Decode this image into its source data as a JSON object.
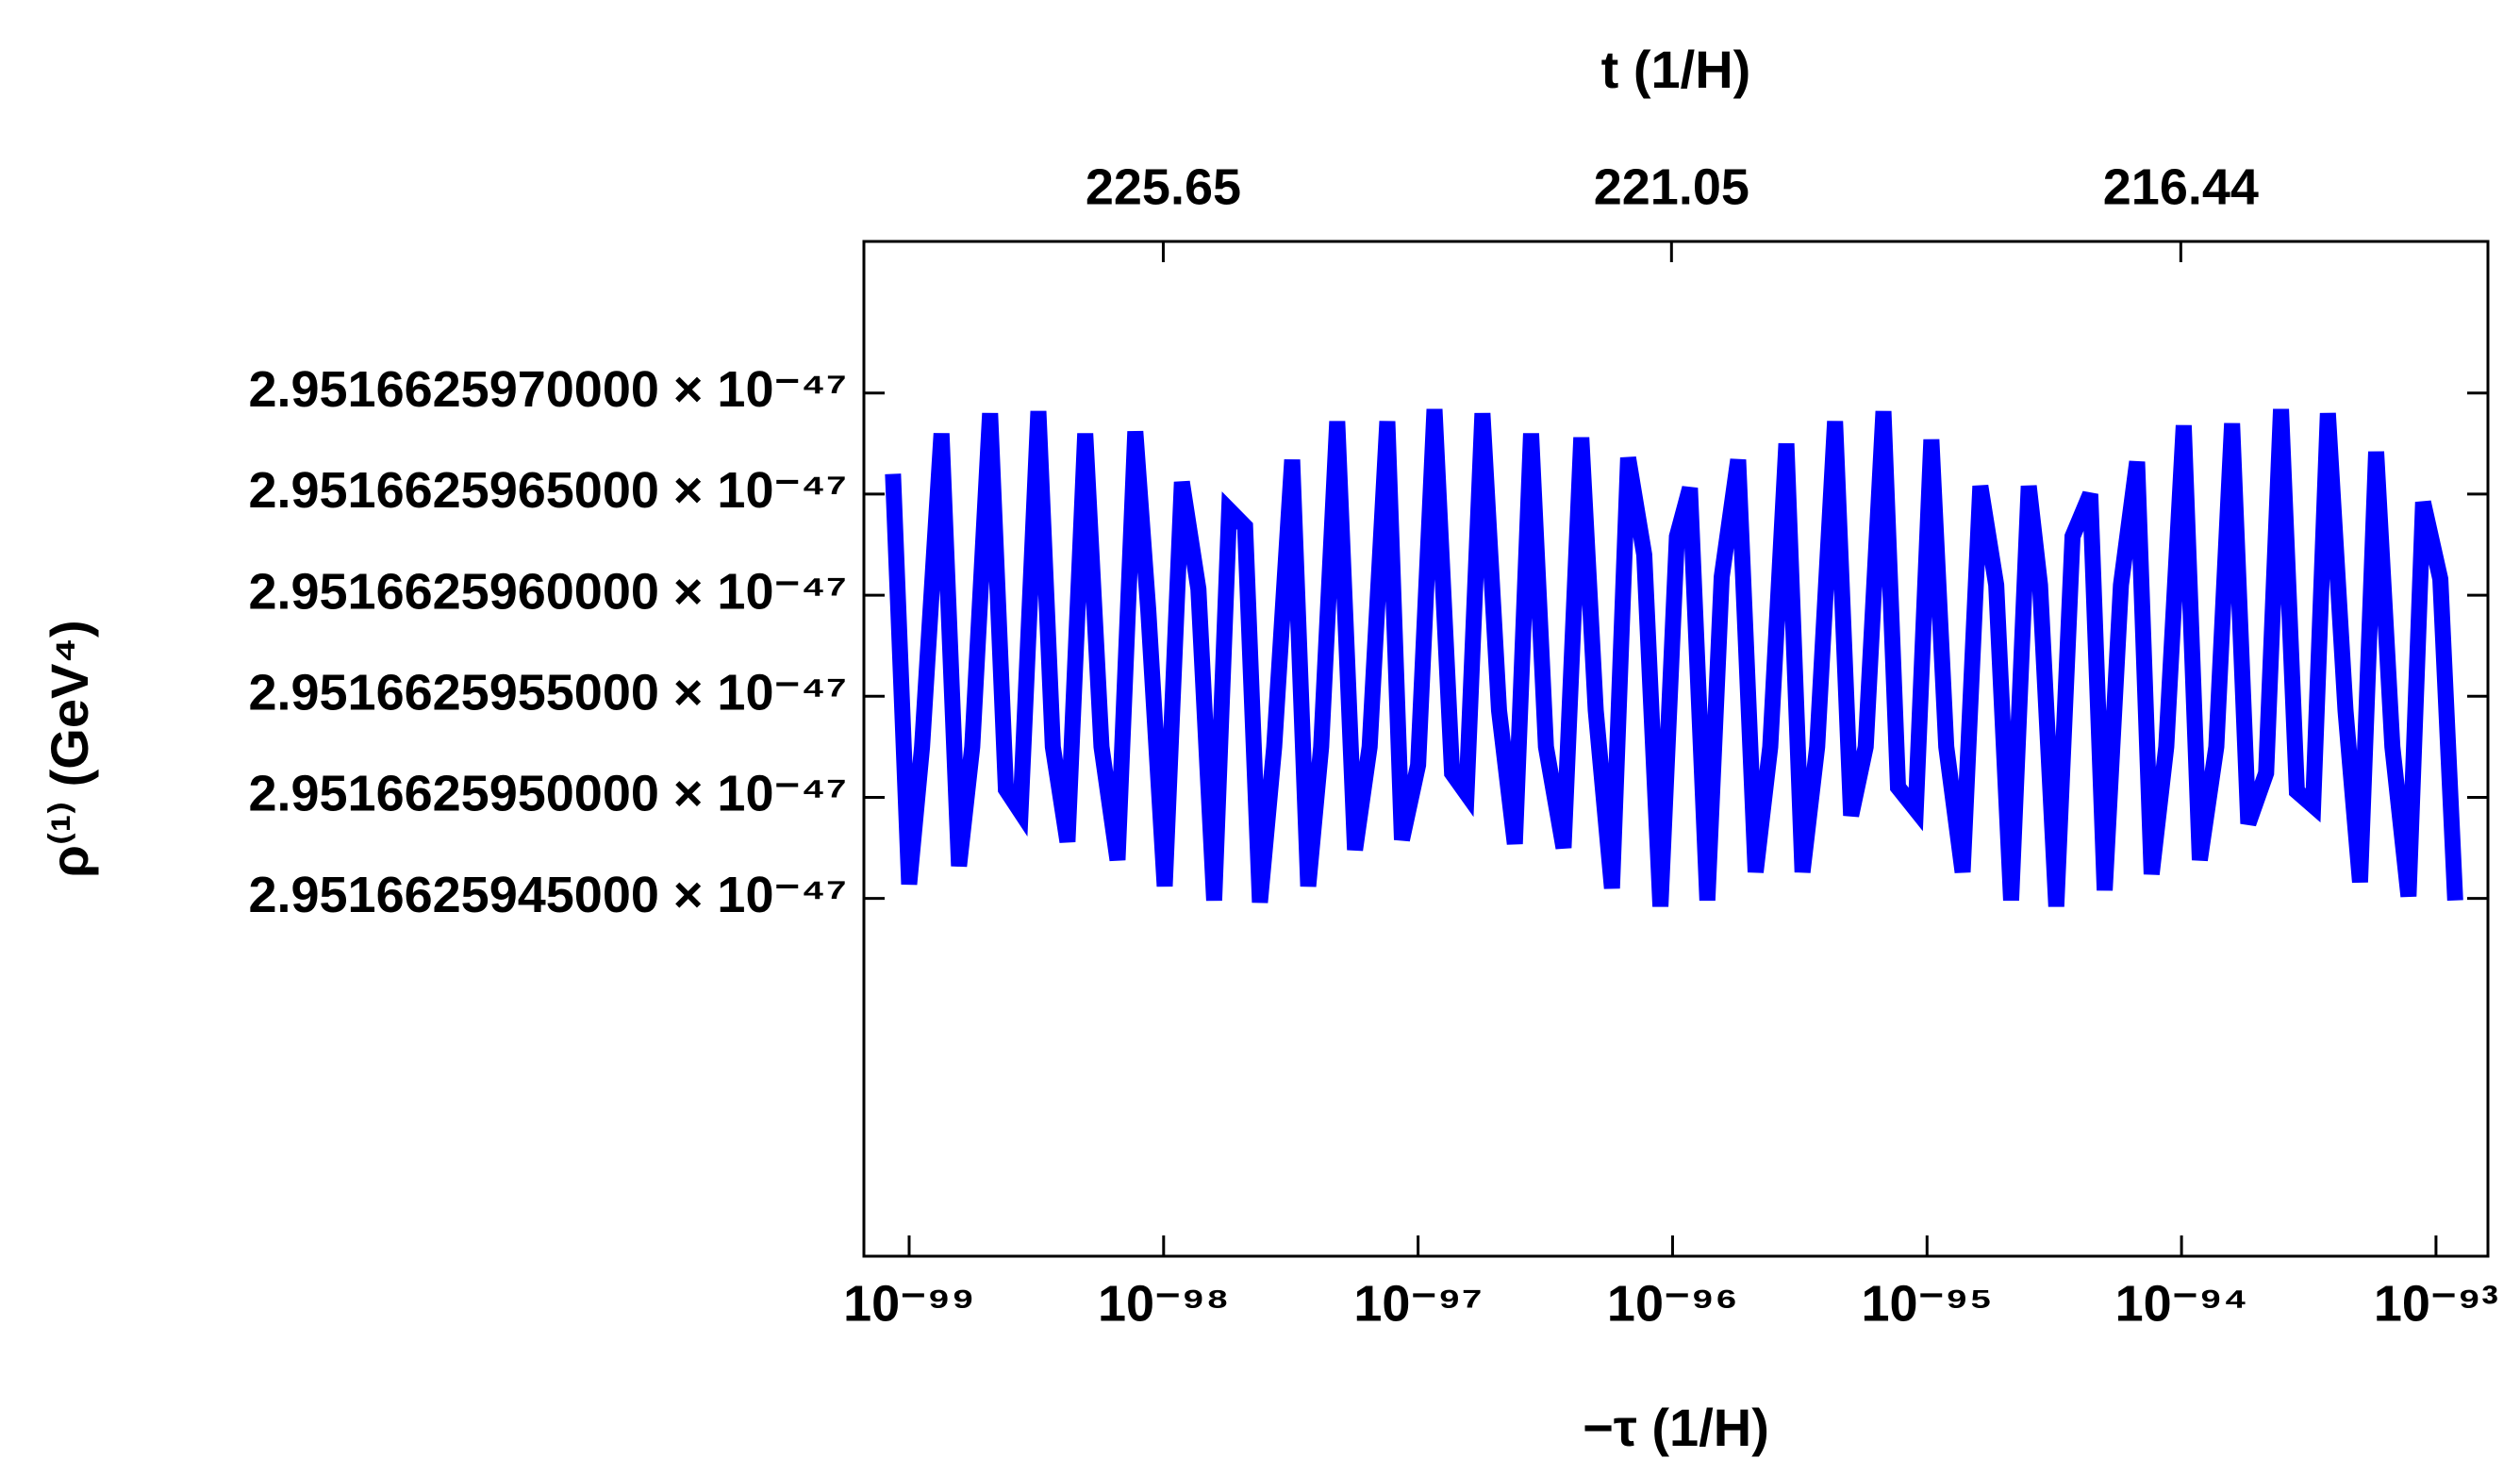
{
  "chart_data": {
    "type": "line",
    "x_label": "−τ (1/H)",
    "x2_label": "t (1/H)",
    "y_label": "ρ⁽¹⁾ (GeV⁴)",
    "xscale": "log",
    "xlim": [
      6.64e-100,
      1.6e-93
    ],
    "xticks": [
      {
        "value": 1e-99,
        "label": "10⁻⁹⁹"
      },
      {
        "value": 1e-98,
        "label": "10⁻⁹⁸"
      },
      {
        "value": 1e-97,
        "label": "10⁻⁹⁷"
      },
      {
        "value": 1e-96,
        "label": "10⁻⁹⁶"
      },
      {
        "value": 1e-95,
        "label": "10⁻⁹⁵"
      },
      {
        "value": 1e-94,
        "label": "10⁻⁹⁴"
      },
      {
        "value": 1e-93,
        "label": "10⁻⁹³"
      }
    ],
    "x2lim": [
      228.36,
      213.66
    ],
    "x2ticks": [
      225.65,
      221.05,
      216.44
    ],
    "ylim": [
      2.95166259273e-47,
      2.95166259775e-47
    ],
    "yticks": [
      {
        "value": 2.9516625945e-47,
        "label": "2.9516625945000 × 10⁻⁴⁷"
      },
      {
        "value": 2.951662595e-47,
        "label": "2.9516625950000 × 10⁻⁴⁷"
      },
      {
        "value": 2.9516625955e-47,
        "label": "2.9516625955000 × 10⁻⁴⁷"
      },
      {
        "value": 2.951662596e-47,
        "label": "2.9516625960000 × 10⁻⁴⁷"
      },
      {
        "value": 2.9516625965e-47,
        "label": "2.9516625965000 × 10⁻⁴⁷"
      },
      {
        "value": 2.951662597e-47,
        "label": "2.9516625970000 × 10⁻⁴⁷"
      }
    ],
    "color": "#0000ff",
    "x": [
      8.64e-100,
      1e-99,
      1.124e-99,
      1.34e-99,
      1.57e-99,
      1.77e-99,
      2.08e-99,
      2.4e-99,
      2.74e-99,
      3.22e-99,
      3.67e-99,
      4.19e-99,
      4.92e-99,
      5.7e-99,
      6.59e-99,
      7.74e-99,
      8.71e-99,
      1.01e-98,
      1.18e-98,
      1.37e-98,
      1.58e-98,
      1.81e-98,
      2.09e-98,
      2.39e-98,
      2.72e-98,
      3.2e-98,
      3.7e-98,
      4.16e-98,
      4.81e-98,
      5.65e-98,
      6.45e-98,
      7.57e-98,
      8.64e-98,
      1e-97,
      1.16e-97,
      1.36e-97,
      1.55e-97,
      1.79e-97,
      2.08e-97,
      2.4e-97,
      2.78e-97,
      3.18e-97,
      3.73e-97,
      4.38e-97,
      4.99e-97,
      5.78e-97,
      6.69e-97,
      7.74e-97,
      8.96e-97,
      1.04e-96,
      1.17e-96,
      1.37e-96,
      1.56e-96,
      1.81e-96,
      2.12e-96,
      2.42e-96,
      2.8e-96,
      3.24e-96,
      3.7e-96,
      4.35e-96,
      5.03e-96,
      5.74e-96,
      6.74e-96,
      7.69e-96,
      9.03e-96,
      1.04e-95,
      1.19e-95,
      1.38e-95,
      1.62e-95,
      1.87e-95,
      2.14e-95,
      2.51e-95,
      2.78e-95,
      3.22e-95,
      3.73e-95,
      4.38e-95,
      4.99e-95,
      5.78e-95,
      6.69e-95,
      7.63e-95,
      8.71e-95,
      1.02e-94,
      1.18e-94,
      1.37e-94,
      1.58e-94,
      1.83e-94,
      2.15e-94,
      2.46e-94,
      2.84e-94,
      3.29e-94,
      3.76e-94,
      4.41e-94,
      5.03e-94,
      5.82e-94,
      6.74e-94,
      7.8e-94,
      8.9e-94,
      1.04e-93,
      1.19e-93
    ],
    "values": [
      2.9516625966e-47,
      2.95166259457e-47,
      2.95166259525e-47,
      2.9516625968e-47,
      2.95166259466e-47,
      2.95166259525e-47,
      2.9516625969e-47,
      2.95166259504e-47,
      2.95166259493e-47,
      2.95166259691e-47,
      2.95166259525e-47,
      2.95166259478e-47,
      2.9516625968e-47,
      2.95166259525e-47,
      2.95166259469e-47,
      2.95166259681e-47,
      2.95166259592e-47,
      2.95166259456e-47,
      2.95166259656e-47,
      2.95166259603e-47,
      2.95166259449e-47,
      2.95166259642e-47,
      2.95166259634e-47,
      2.95166259448e-47,
      2.95166259525e-47,
      2.95166259667e-47,
      2.95166259456e-47,
      2.95166259525e-47,
      2.95166259686e-47,
      2.95166259474e-47,
      2.95166259525e-47,
      2.95166259686e-47,
      2.95166259479e-47,
      2.95166259516e-47,
      2.95166259692e-47,
      2.95166259512e-47,
      2.95166259502e-47,
      2.9516625969e-47,
      2.95166259543e-47,
      2.95166259477e-47,
      2.9516625968e-47,
      2.95166259525e-47,
      2.95166259475e-47,
      2.95166259678e-47,
      2.95166259543e-47,
      2.95166259455e-47,
      2.95166259668e-47,
      2.9516625962e-47,
      2.95166259446e-47,
      2.95166259629e-47,
      2.95166259653e-47,
      2.95166259449e-47,
      2.95166259609e-47,
      2.95166259667e-47,
      2.95166259463e-47,
      2.95166259525e-47,
      2.95166259675e-47,
      2.95166259463e-47,
      2.95166259525e-47,
      2.95166259686e-47,
      2.95166259491e-47,
      2.95166259525e-47,
      2.95166259691e-47,
      2.95166259505e-47,
      2.95166259494e-47,
      2.95166259677e-47,
      2.95166259525e-47,
      2.95166259463e-47,
      2.95166259654e-47,
      2.95166259605e-47,
      2.95166259449e-47,
      2.95166259654e-47,
      2.95166259605e-47,
      2.95166259446e-47,
      2.95166259629e-47,
      2.9516625965e-47,
      2.95166259454e-47,
      2.95166259605e-47,
      2.95166259666e-47,
      2.95166259462e-47,
      2.95166259525e-47,
      2.95166259684e-47,
      2.95166259469e-47,
      2.95166259525e-47,
      2.95166259685e-47,
      2.95166259487e-47,
      2.95166259512e-47,
      2.95166259692e-47,
      2.95166259503e-47,
      2.95166259496e-47,
      2.9516625969e-47,
      2.95166259543e-47,
      2.95166259458e-47,
      2.95166259671e-47,
      2.95166259525e-47,
      2.95166259451e-47,
      2.95166259646e-47,
      2.95166259608e-47,
      2.95166259449e-47
    ]
  }
}
